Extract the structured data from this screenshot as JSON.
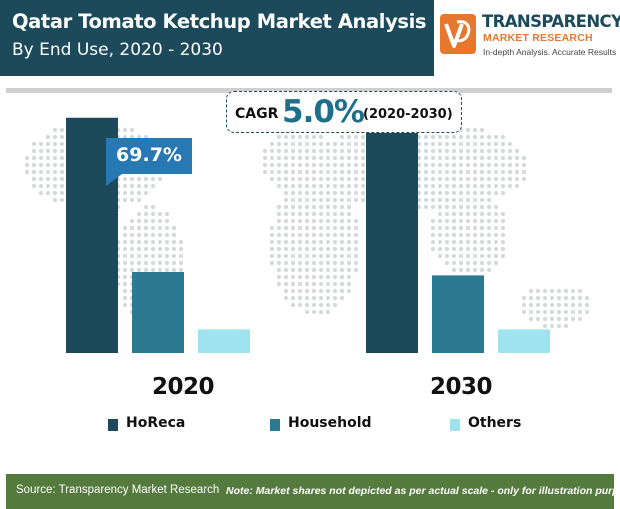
{
  "header": {
    "title": "Qatar Tomato Ketchup Market Analysis",
    "subtitle": "By End Use, 2020 - 2030"
  },
  "logo": {
    "name": "TRANSPARENCY",
    "line2": "MARKET RESEARCH",
    "line3": "In-depth Analysis. Accurate Results"
  },
  "cagr": {
    "label": "CAGR",
    "value": "5.0%",
    "period": "(2020-2030)"
  },
  "callout": {
    "text": "69.7%"
  },
  "footer": {
    "source": "Source: Transparency Market Research",
    "note": "Note: Market shares not depicted as per actual scale - only for illustration purposes"
  },
  "colors": {
    "header": "#1c4a5a",
    "horeca": "#1c4a5a",
    "household": "#2b7a91",
    "others": "#9ee3ee",
    "accent": "#2878b4",
    "footer": "#547a3e",
    "logo_orange": "#e8772e"
  },
  "chart_data": {
    "type": "bar",
    "categories": [
      "2020",
      "2030"
    ],
    "series": [
      {
        "name": "HoReca",
        "values": [
          69.7,
          71.5
        ]
      },
      {
        "name": "Household",
        "values": [
          24.0,
          23.0
        ]
      },
      {
        "name": "Others",
        "values": [
          7.0,
          7.0
        ]
      }
    ],
    "ylim": [
      0,
      80
    ],
    "grid": false,
    "legend": "bottom"
  }
}
